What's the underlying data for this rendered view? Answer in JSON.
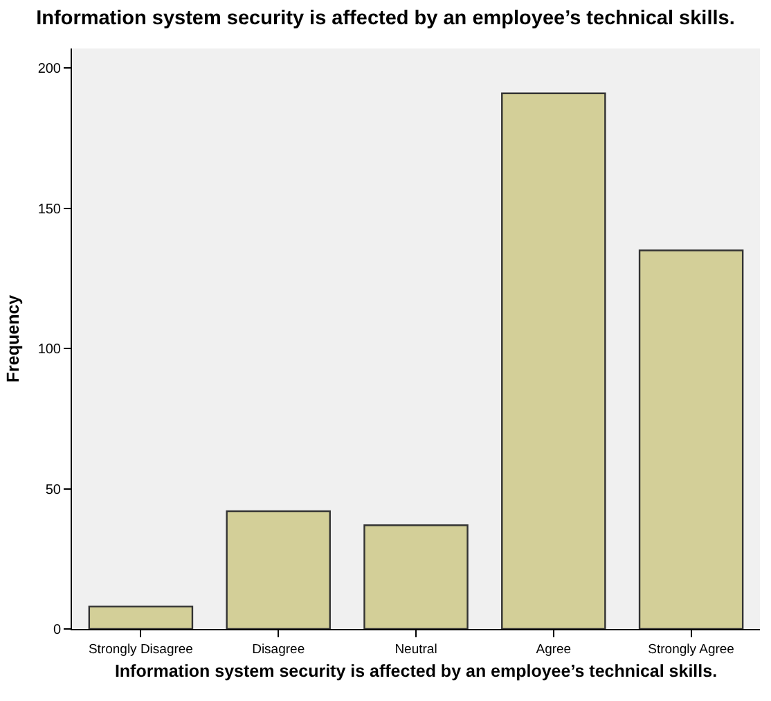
{
  "chart_data": {
    "type": "bar",
    "title": "Information system security is affected by an employee’s technical skills.",
    "xlabel": "Information system security is affected by an employee’s technical skills.",
    "ylabel": "Frequency",
    "categories": [
      "Strongly Disagree",
      "Disagree",
      "Neutral",
      "Agree",
      "Strongly Agree"
    ],
    "values": [
      8,
      42,
      37,
      191,
      135
    ],
    "color": "#d3cf98",
    "ylim": [
      0,
      207
    ],
    "yticks": [
      0,
      50,
      100,
      150,
      200
    ],
    "grid": false,
    "legend": false
  }
}
